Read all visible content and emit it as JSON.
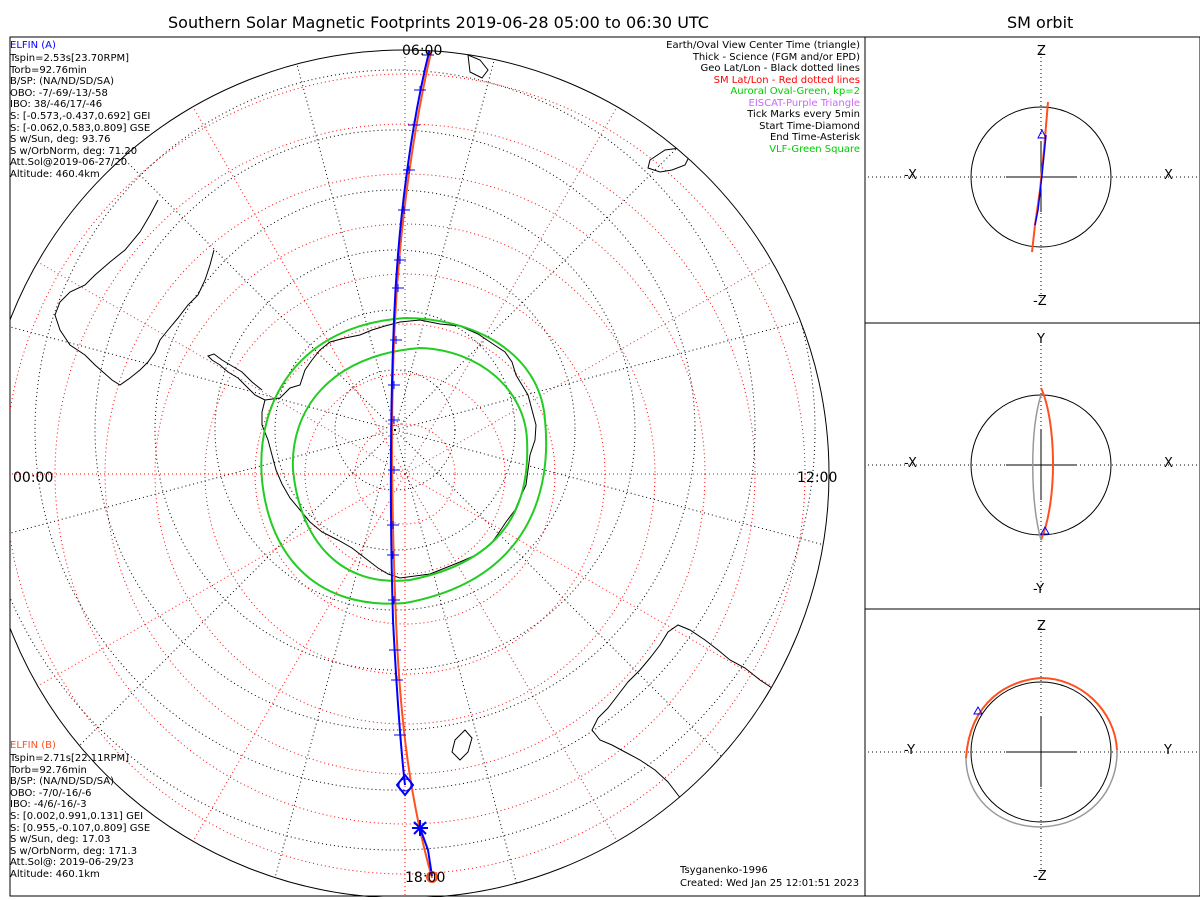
{
  "title": "Southern Solar Magnetic Footprints 2019-06-28 05:00 to 06:30 UTC",
  "orbit_title": "SM orbit",
  "local_time_labels": {
    "top": "06:00",
    "left": "00:00",
    "right": "12:00",
    "bottom": "18:00"
  },
  "elfin_a": {
    "name": "ELFIN (A)",
    "color": "#0000ff",
    "lines": [
      "Tspin=2.53s[23.70RPM]",
      "Torb=92.76min",
      "B/SP: (NA/ND/SD/SA)",
      "OBO: -7/-69/-13/-58",
      "IBO: 38/-46/17/-46",
      "S: [-0.573,-0.437,0.692] GEI",
      "S: [-0.062,0.583,0.809] GSE",
      "S w/Sun, deg: 93.76",
      "S w/OrbNorm, deg: 71.20",
      "Att.Sol@2019-06-27/20",
      "Altitude: 460.4km"
    ]
  },
  "elfin_b": {
    "name": "ELFIN (B)",
    "color": "#ff5020",
    "lines": [
      "Tspin=2.71s[22.11RPM]",
      "Torb=92.76min",
      "B/SP: (NA/ND/SD/SA)",
      "OBO: -7/0/-16/-6",
      "IBO: -4/6/-16/-3",
      "S: [0.002,0.991,0.131] GEI",
      "S: [0.955,-0.107,0.809] GSE",
      "S w/Sun, deg: 17.03",
      "S w/OrbNorm, deg: 171.3",
      "Att.Sol@: 2019-06-29/23",
      "Altitude: 460.1km"
    ]
  },
  "legend": [
    {
      "text": "Earth/Oval View Center Time (triangle)",
      "color": "#000000"
    },
    {
      "text": "Thick - Science (FGM and/or EPD)",
      "color": "#000000"
    },
    {
      "text": "Geo Lat/Lon - Black dotted lines",
      "color": "#000000"
    },
    {
      "text": "SM Lat/Lon - Red dotted lines",
      "color": "#ff0000"
    },
    {
      "text": "Auroral Oval-Green, kp=2",
      "color": "#00cc00"
    },
    {
      "text": "EISCAT-Purple Triangle",
      "color": "#cc66ff"
    },
    {
      "text": "Tick Marks every 5min",
      "color": "#000000"
    },
    {
      "text": "Start Time-Diamond",
      "color": "#000000"
    },
    {
      "text": "End Time-Asterisk",
      "color": "#000000"
    },
    {
      "text": "VLF-Green Square",
      "color": "#00cc00"
    }
  ],
  "credit": {
    "model": "Tsyganenko-1996",
    "created": "Created: Wed Jan 25 12:01:51 2023"
  },
  "orbit_panels": [
    {
      "top": "Z",
      "bottom": "-Z",
      "left": "-X",
      "right": "X"
    },
    {
      "top": "Y",
      "bottom": "-Y",
      "left": "-X",
      "right": "X"
    },
    {
      "top": "Z",
      "bottom": "-Z",
      "left": "-Y",
      "right": "Y"
    }
  ],
  "colors": {
    "elfin_a": "#0000ff",
    "elfin_b": "#ff5020",
    "oval": "#00cc00",
    "sm_grid": "#ff0000",
    "geo_grid": "#000000"
  }
}
